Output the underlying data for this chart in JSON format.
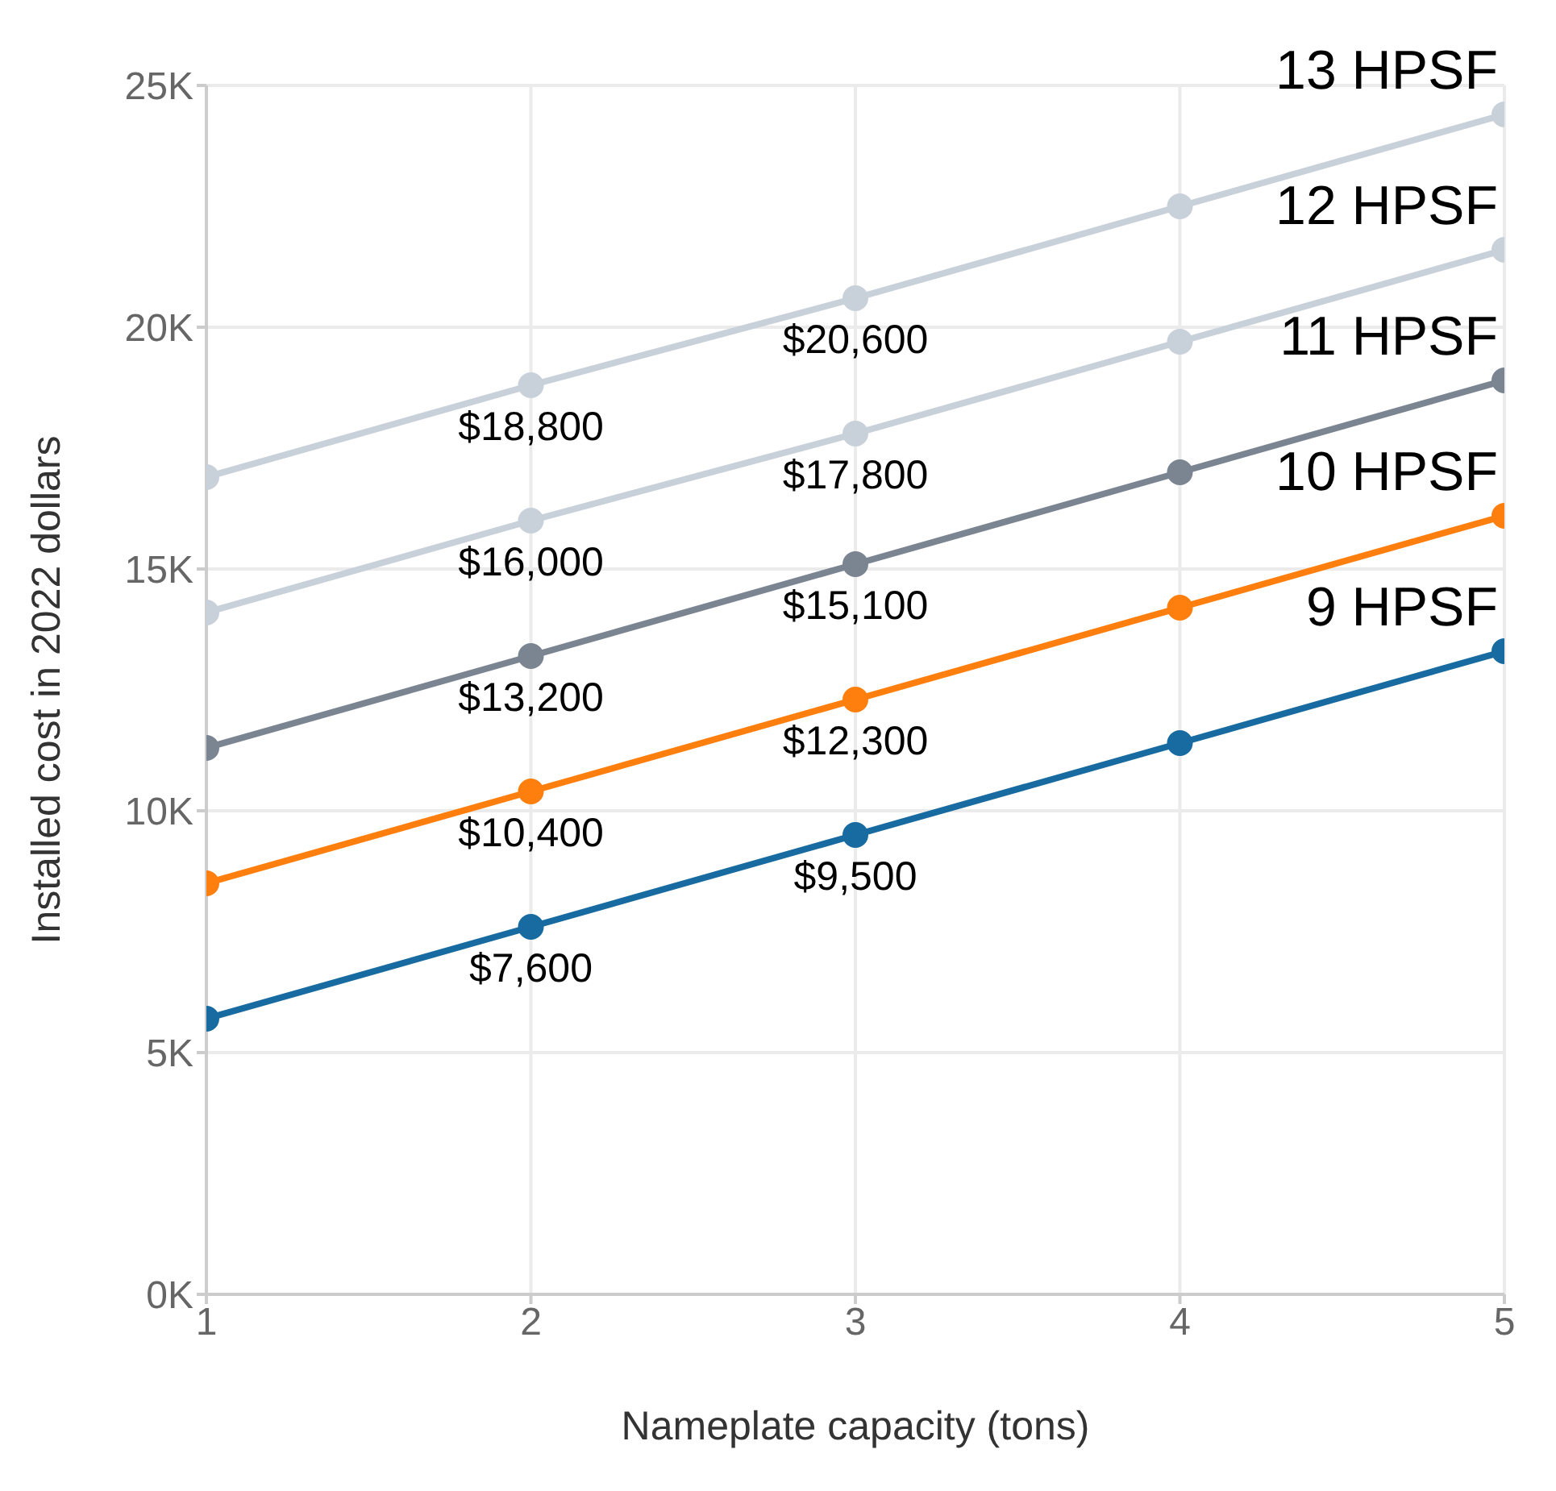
{
  "chart_data": {
    "type": "line",
    "xlabel": "Nameplate capacity (tons)",
    "ylabel": "Installed cost in 2022 dollars",
    "x": [
      1,
      2,
      3,
      4,
      5
    ],
    "series": [
      {
        "name": "9 HPSF",
        "color": "#176ba0",
        "values": [
          5700,
          7600,
          9500,
          11400,
          13300
        ],
        "value_labels": [
          null,
          "$7,600",
          "$9,500",
          null,
          null
        ]
      },
      {
        "name": "10 HPSF",
        "color": "#ff7f0e",
        "values": [
          8500,
          10400,
          12300,
          14200,
          16100
        ],
        "value_labels": [
          null,
          "$10,400",
          "$12,300",
          null,
          null
        ]
      },
      {
        "name": "11 HPSF",
        "color": "#7b8491",
        "values": [
          11300,
          13200,
          15100,
          17000,
          18900
        ],
        "value_labels": [
          null,
          "$13,200",
          "$15,100",
          null,
          null
        ]
      },
      {
        "name": "12 HPSF",
        "color": "#c8d0d9",
        "values": [
          14100,
          16000,
          17800,
          19700,
          21600
        ],
        "value_labels": [
          null,
          "$16,000",
          "$17,800",
          null,
          null
        ]
      },
      {
        "name": "13 HPSF",
        "color": "#c8d0d9",
        "values": [
          16900,
          18800,
          20600,
          22500,
          24400
        ],
        "value_labels": [
          null,
          "$18,800",
          "$20,600",
          null,
          null
        ]
      }
    ],
    "xlim": [
      1,
      5
    ],
    "xticks": [
      1,
      2,
      3,
      4,
      5
    ],
    "ylim": [
      0,
      25000
    ],
    "yticks": [
      {
        "value": 0,
        "label": "0K"
      },
      {
        "value": 5000,
        "label": "5K"
      },
      {
        "value": 10000,
        "label": "10K"
      },
      {
        "value": 15000,
        "label": "15K"
      },
      {
        "value": 20000,
        "label": "20K"
      },
      {
        "value": 25000,
        "label": "25K"
      }
    ],
    "grid": true,
    "marker": "circle",
    "line_style": "solid"
  }
}
